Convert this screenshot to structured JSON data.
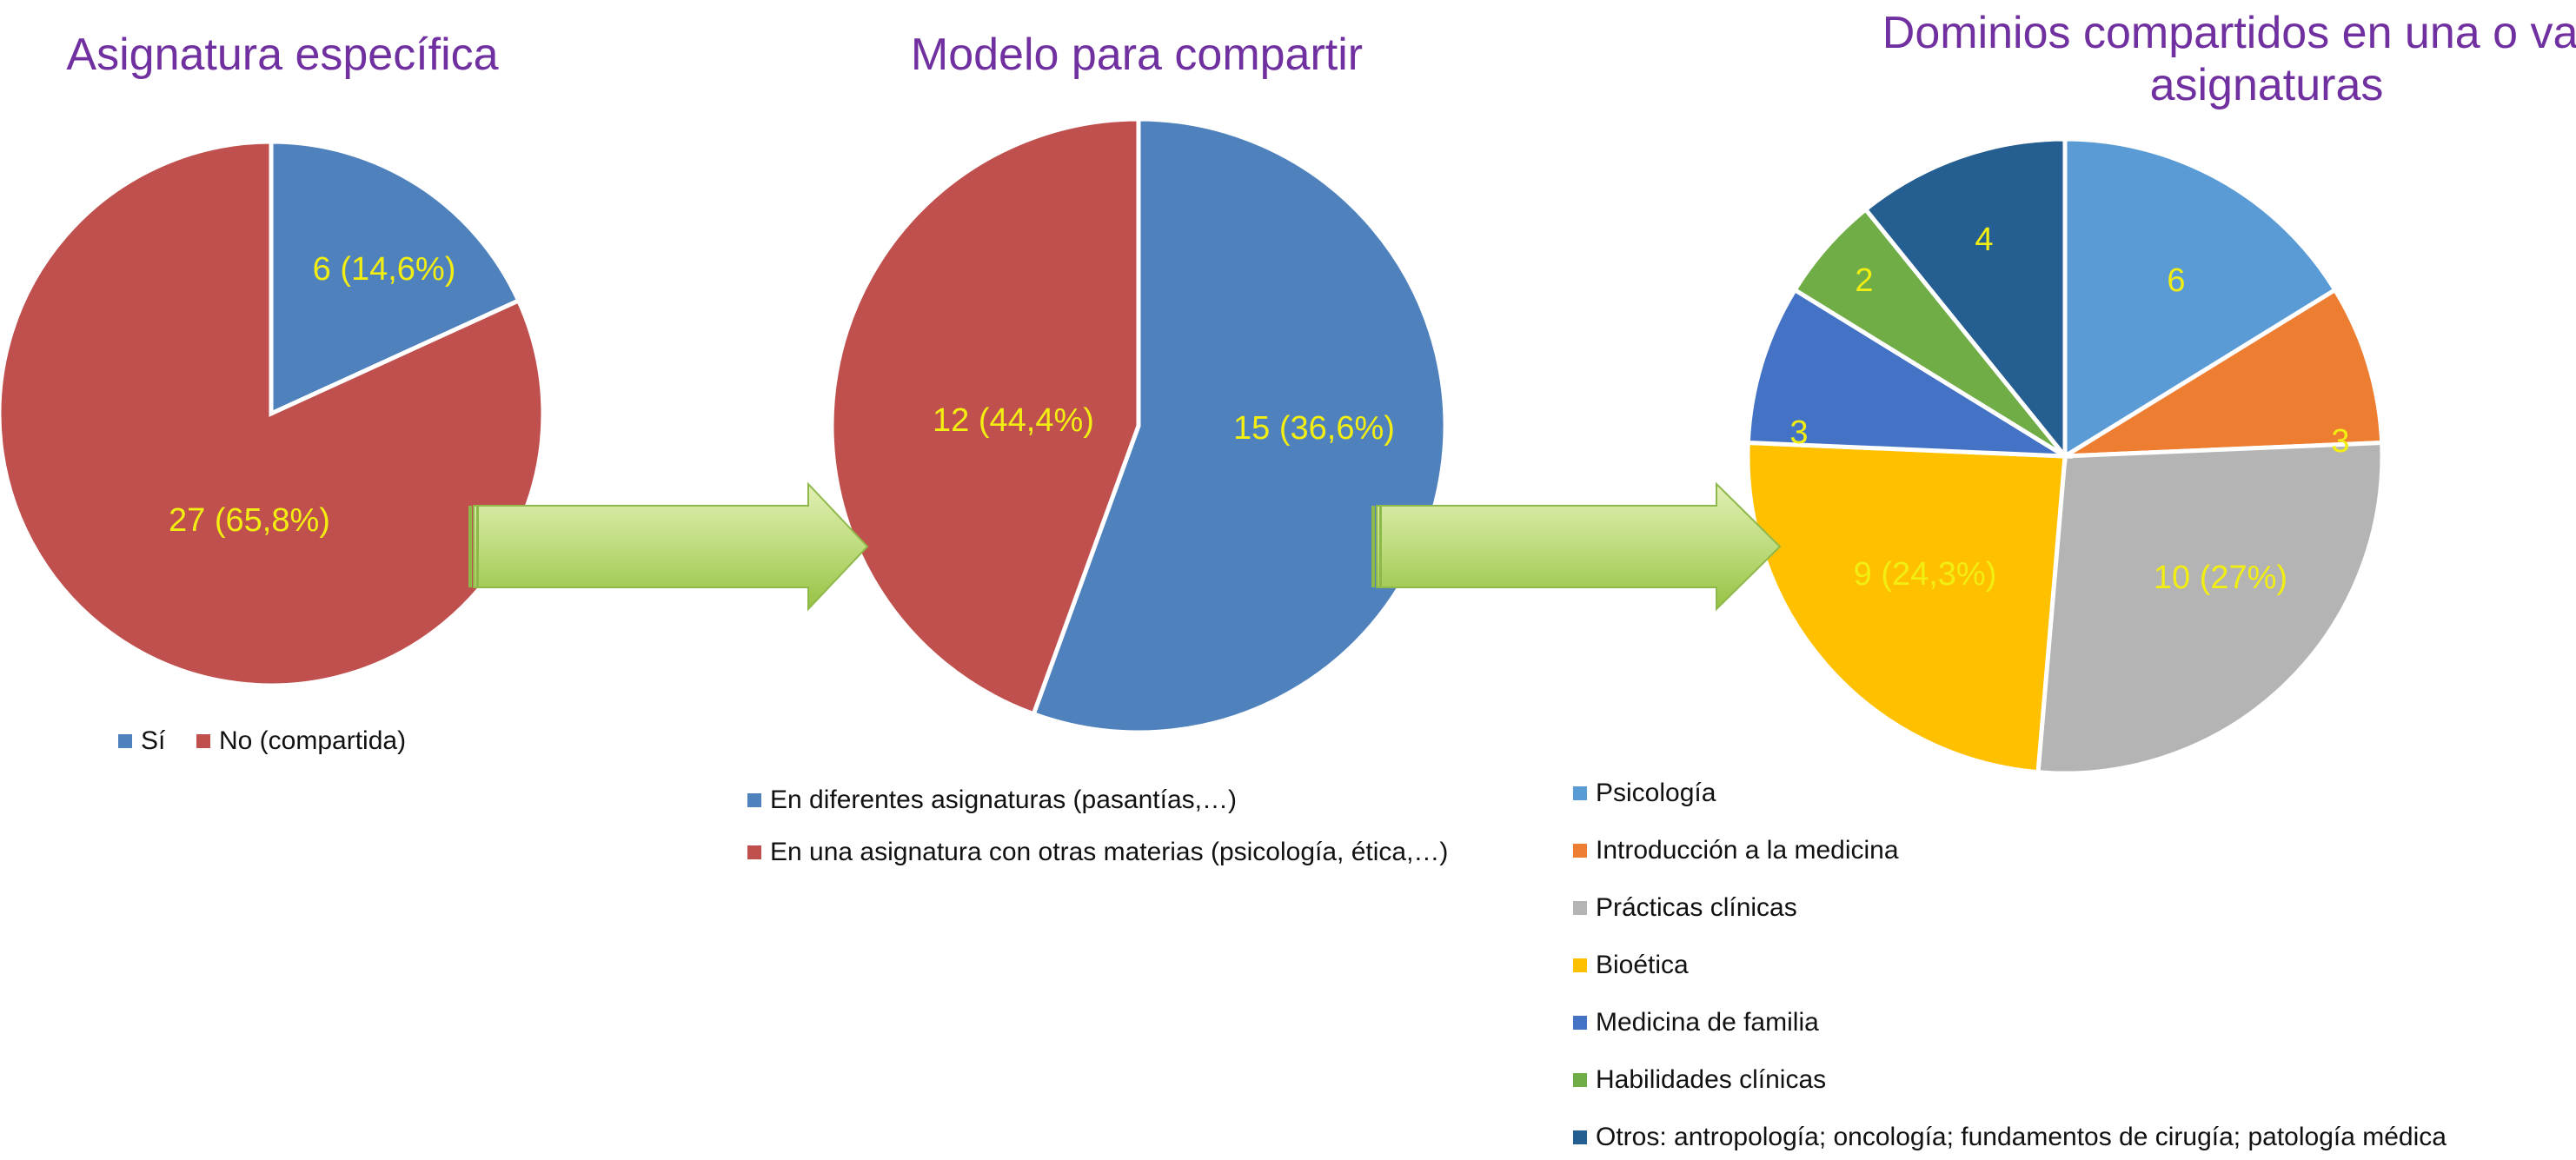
{
  "chart_data": [
    {
      "type": "pie",
      "title": "Asignatura específica",
      "categories": [
        "Sí",
        "No (compartida)"
      ],
      "values": [
        6,
        27
      ],
      "data_labels": [
        "6 (14,6%)",
        "27 (65,8%)"
      ],
      "colors": [
        "#4f81bd",
        "#c0504d"
      ],
      "legend_placement": "bottom"
    },
    {
      "type": "pie",
      "title": "Modelo para compartir",
      "categories": [
        "En diferentes asignaturas (pasantías,…)",
        "En una asignatura con otras materias (psicología, ética,…)"
      ],
      "values": [
        15,
        12
      ],
      "data_labels": [
        "15 (36,6%)",
        "12 (44,4%)"
      ],
      "colors": [
        "#4f81bd",
        "#c0504d"
      ],
      "legend_placement": "bottom"
    },
    {
      "type": "pie",
      "title": "Dominios compartidos en una o varias asignaturas",
      "title_lines": [
        "Dominios compartidos en una o varias",
        "asignaturas"
      ],
      "categories": [
        "Psicología",
        "Introducción a la medicina",
        "Prácticas clínicas",
        "Bioética",
        "Medicina de familia",
        "Habilidades clínicas",
        "Otros: antropología; oncología; fundamentos de cirugía; patología médica"
      ],
      "values": [
        6,
        3,
        10,
        9,
        3,
        2,
        4
      ],
      "data_labels": [
        "6",
        "3",
        "10 (27%)",
        "9 (24,3%)",
        "3",
        "2",
        "4"
      ],
      "colors": [
        "#5b9bd5",
        "#ed7d31",
        "#b4b4b4",
        "#ffc000",
        "#4472c4",
        "#70ad47",
        "#255e91"
      ],
      "legend_placement": "bottom"
    }
  ],
  "colors": {
    "title": "#7030a0",
    "data_label": "#f2ee12",
    "arrow": "#a9d15a"
  }
}
